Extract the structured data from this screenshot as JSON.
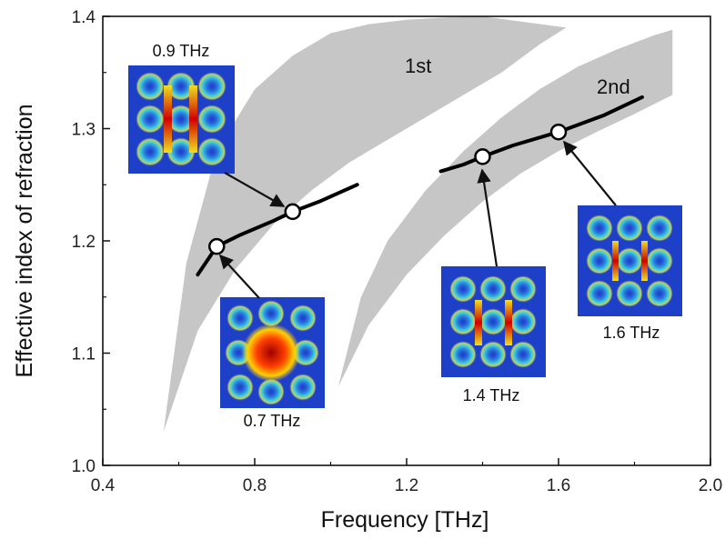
{
  "chart_data": {
    "type": "line",
    "xlabel": "Frequency [THz]",
    "ylabel": "Effective index of refraction",
    "xlim": [
      0.4,
      2.0
    ],
    "ylim": [
      1.0,
      1.4
    ],
    "xticks": [
      "0.4",
      "0.8",
      "1.2",
      "1.6",
      "2.0"
    ],
    "yticks": [
      "1.0",
      "1.1",
      "1.2",
      "1.3",
      "1.4"
    ],
    "grid": false,
    "bands": [
      {
        "label": "1st",
        "lower": {
          "x": [
            0.56,
            0.65,
            0.75,
            0.85,
            0.95,
            1.05,
            1.15,
            1.25,
            1.35,
            1.45,
            1.55,
            1.62
          ],
          "y": [
            1.03,
            1.12,
            1.175,
            1.215,
            1.245,
            1.27,
            1.29,
            1.31,
            1.33,
            1.35,
            1.375,
            1.39
          ]
        },
        "upper": {
          "x": [
            0.56,
            0.62,
            0.7,
            0.8,
            0.9,
            1.0,
            1.1,
            1.2,
            1.3,
            1.4
          ],
          "y": [
            1.03,
            1.18,
            1.28,
            1.335,
            1.365,
            1.385,
            1.393,
            1.397,
            1.399,
            1.4
          ]
        }
      },
      {
        "label": "2nd",
        "lower": {
          "x": [
            1.02,
            1.1,
            1.2,
            1.3,
            1.4,
            1.5,
            1.6,
            1.7,
            1.8,
            1.9
          ],
          "y": [
            1.07,
            1.125,
            1.17,
            1.205,
            1.235,
            1.26,
            1.28,
            1.297,
            1.313,
            1.33
          ]
        },
        "upper": {
          "x": [
            1.02,
            1.08,
            1.15,
            1.25,
            1.35,
            1.45,
            1.55,
            1.65,
            1.75,
            1.85,
            1.9
          ],
          "y": [
            1.07,
            1.15,
            1.2,
            1.245,
            1.28,
            1.31,
            1.335,
            1.355,
            1.37,
            1.383,
            1.388
          ]
        }
      }
    ],
    "series": [
      {
        "x": [
          0.65,
          0.7,
          0.76,
          0.85,
          0.9,
          0.97,
          1.07
        ],
        "y": [
          1.17,
          1.195,
          1.205,
          1.218,
          1.226,
          1.235,
          1.25
        ]
      },
      {
        "x": [
          1.29,
          1.35,
          1.4,
          1.48,
          1.6,
          1.72,
          1.82
        ],
        "y": [
          1.262,
          1.268,
          1.275,
          1.285,
          1.297,
          1.312,
          1.328
        ]
      }
    ],
    "markers": [
      {
        "x": 0.7,
        "y": 1.195
      },
      {
        "x": 0.9,
        "y": 1.226
      },
      {
        "x": 1.4,
        "y": 1.275
      },
      {
        "x": 1.6,
        "y": 1.297
      }
    ],
    "annotations": [
      {
        "text": "0.9 THz"
      },
      {
        "text": "0.7 THz"
      },
      {
        "text": "1.4 THz"
      },
      {
        "text": "1.6 THz"
      }
    ]
  }
}
